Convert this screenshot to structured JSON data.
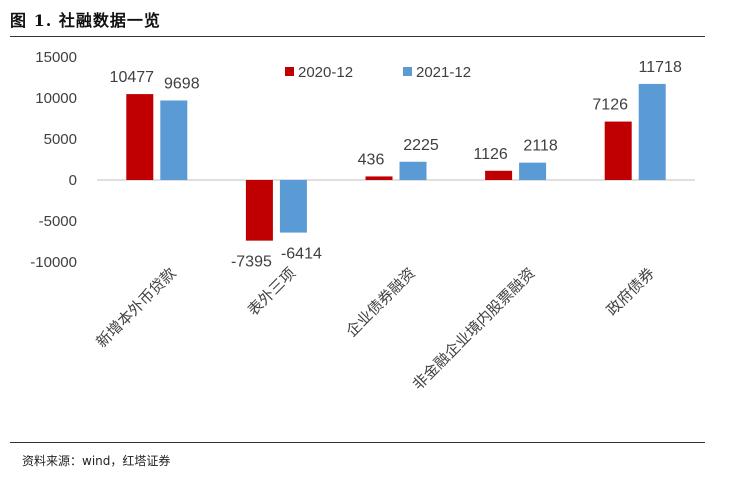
{
  "figure": {
    "title": "图 1. 社融数据一览",
    "source": "资料来源：wind，红塔证券"
  },
  "colors": {
    "series_2020": "#c00000",
    "series_2021": "#5b9bd5",
    "axis": "#bfbfbf",
    "text": "#404040"
  },
  "chart_data": {
    "type": "bar",
    "categories": [
      "新增本外币贷款",
      "表外三项",
      "企业债券融资",
      "非金融企业境内股票融资",
      "政府债券"
    ],
    "series": [
      {
        "name": "2020-12",
        "values": [
          10477,
          -7395,
          436,
          1126,
          7126
        ]
      },
      {
        "name": "2021-12",
        "values": [
          9698,
          -6414,
          2225,
          2118,
          11718
        ]
      }
    ],
    "yticks": [
      "15000",
      "10000",
      "5000",
      "0",
      "-5000",
      "-10000"
    ],
    "ylim": [
      -10000,
      15000
    ],
    "grid": false,
    "legend": "top-center"
  }
}
